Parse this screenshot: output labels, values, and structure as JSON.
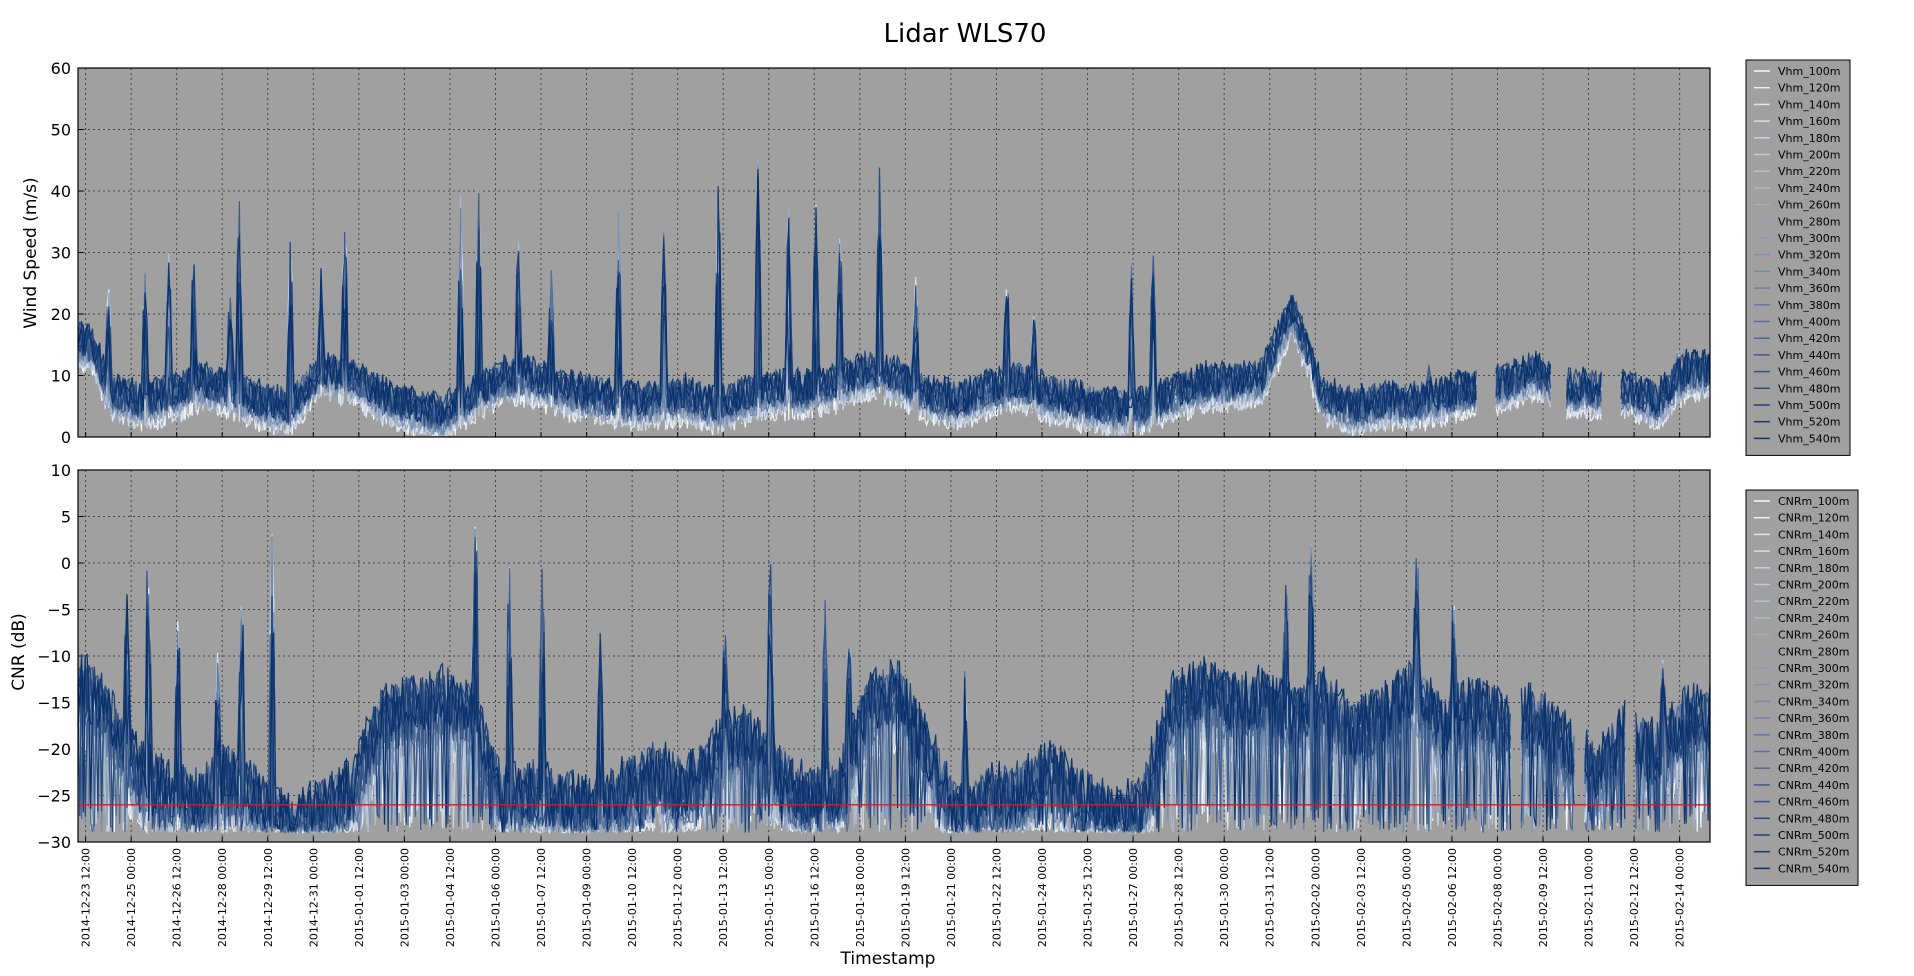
{
  "title": "Lidar WLS70",
  "colors": {
    "plot_bg": "#a0a0a0",
    "grid": "#444444",
    "threshold_line": "#e8141c",
    "series_light": "#f4f8fd",
    "series_dark": "#08306b"
  },
  "chart_data": [
    {
      "type": "line",
      "ylabel": "Wind Speed (m/s)",
      "ylim": [
        0,
        60
      ],
      "yticks": [
        "0",
        "10",
        "20",
        "30",
        "40",
        "50",
        "60"
      ],
      "grid": true,
      "legend_placement": "outside-right",
      "x_range": [
        "2014-12-23 06:00",
        "2015-02-15 00:00"
      ],
      "legend": [
        "Vhm_100m",
        "Vhm_120m",
        "Vhm_140m",
        "Vhm_160m",
        "Vhm_180m",
        "Vhm_200m",
        "Vhm_220m",
        "Vhm_240m",
        "Vhm_260m",
        "Vhm_280m",
        "Vhm_300m",
        "Vhm_320m",
        "Vhm_340m",
        "Vhm_360m",
        "Vhm_380m",
        "Vhm_400m",
        "Vhm_420m",
        "Vhm_440m",
        "Vhm_460m",
        "Vhm_480m",
        "Vhm_500m",
        "Vhm_520m",
        "Vhm_540m"
      ],
      "base_profile": {
        "t_days": [
          0,
          0.5,
          1,
          1.5,
          2,
          3,
          4,
          5,
          6,
          7,
          8,
          9,
          10,
          11,
          12,
          13,
          14,
          15,
          16,
          17,
          18,
          19,
          20,
          21,
          22,
          23,
          24,
          25,
          26,
          27,
          28,
          29,
          30,
          31,
          32,
          33,
          34,
          35,
          36,
          37,
          38,
          39,
          40,
          41,
          42,
          43,
          44,
          45,
          46,
          47,
          48,
          49,
          50,
          51,
          52,
          53
        ],
        "values": [
          15,
          14,
          7,
          6,
          5,
          6,
          8,
          7,
          5,
          4,
          10,
          9,
          6,
          4,
          3,
          6,
          9,
          9,
          7,
          6,
          5,
          5,
          6,
          4,
          6,
          7,
          7,
          8,
          10,
          9,
          6,
          5,
          7,
          8,
          6,
          5,
          4,
          4,
          6,
          8,
          8,
          9,
          20,
          6,
          4,
          5,
          5,
          6,
          7,
          8,
          10,
          7,
          7,
          7,
          5,
          10
        ]
      },
      "peaks": [
        {
          "t": 1.0,
          "v": 26
        },
        {
          "t": 2.2,
          "v": 28
        },
        {
          "t": 3.0,
          "v": 33
        },
        {
          "t": 3.8,
          "v": 31
        },
        {
          "t": 5.3,
          "v": 42
        },
        {
          "t": 5.0,
          "v": 25
        },
        {
          "t": 7.0,
          "v": 34
        },
        {
          "t": 8.0,
          "v": 30
        },
        {
          "t": 8.8,
          "v": 38
        },
        {
          "t": 12.6,
          "v": 40
        },
        {
          "t": 13.2,
          "v": 41
        },
        {
          "t": 14.5,
          "v": 34
        },
        {
          "t": 15.6,
          "v": 30
        },
        {
          "t": 17.8,
          "v": 38
        },
        {
          "t": 19.3,
          "v": 35
        },
        {
          "t": 21.1,
          "v": 45
        },
        {
          "t": 22.4,
          "v": 46
        },
        {
          "t": 23.4,
          "v": 40
        },
        {
          "t": 24.3,
          "v": 40
        },
        {
          "t": 25.1,
          "v": 35
        },
        {
          "t": 26.4,
          "v": 46
        },
        {
          "t": 27.6,
          "v": 27
        },
        {
          "t": 30.6,
          "v": 28
        },
        {
          "t": 31.5,
          "v": 22
        },
        {
          "t": 34.7,
          "v": 30
        },
        {
          "t": 35.4,
          "v": 32
        },
        {
          "t": 40.6,
          "v": 15
        },
        {
          "t": 44.5,
          "v": 12
        },
        {
          "t": 52.7,
          "v": 15
        }
      ],
      "gaps": [
        [
          46.1,
          46.7
        ],
        [
          48.5,
          49.0
        ],
        [
          50.2,
          50.8
        ]
      ]
    },
    {
      "type": "line",
      "xlabel": "Timestamp",
      "ylabel": "CNR (dB)",
      "ylim": [
        -30,
        10
      ],
      "yticks": [
        "−30",
        "−25",
        "−20",
        "−15",
        "−10",
        "−5",
        "0",
        "5",
        "10"
      ],
      "grid": true,
      "legend_placement": "outside-right",
      "threshold": -26,
      "x_range": [
        "2014-12-23 06:00",
        "2015-02-15 00:00"
      ],
      "legend": [
        "CNRm_100m",
        "CNRm_120m",
        "CNRm_140m",
        "CNRm_160m",
        "CNRm_180m",
        "CNRm_200m",
        "CNRm_220m",
        "CNRm_240m",
        "CNRm_260m",
        "CNRm_280m",
        "CNRm_300m",
        "CNRm_320m",
        "CNRm_340m",
        "CNRm_360m",
        "CNRm_380m",
        "CNRm_400m",
        "CNRm_420m",
        "CNRm_440m",
        "CNRm_460m",
        "CNRm_480m",
        "CNRm_500m",
        "CNRm_520m",
        "CNRm_540m"
      ],
      "base_profile": {
        "t_days": [
          0,
          0.5,
          1,
          2,
          3,
          4,
          5,
          6,
          7,
          8,
          9,
          10,
          11,
          12,
          13,
          14,
          15,
          16,
          17,
          18,
          19,
          20,
          21,
          22,
          23,
          24,
          25,
          26,
          27,
          28,
          29,
          30,
          31,
          32,
          33,
          34,
          35,
          36,
          37,
          38,
          39,
          40,
          41,
          42,
          43,
          44,
          45,
          46,
          47,
          48,
          49,
          50,
          51,
          52,
          53
        ],
        "values": [
          -12,
          -14,
          -16,
          -22,
          -24,
          -25,
          -22,
          -25,
          -28,
          -26,
          -24,
          -16,
          -15,
          -14,
          -16,
          -25,
          -24,
          -25,
          -26,
          -24,
          -22,
          -24,
          -20,
          -18,
          -22,
          -25,
          -24,
          -15,
          -13,
          -20,
          -27,
          -25,
          -24,
          -22,
          -25,
          -27,
          -26,
          -15,
          -13,
          -15,
          -14,
          -16,
          -14,
          -18,
          -16,
          -13,
          -17,
          -15,
          -17,
          -16,
          -19,
          -22,
          -18,
          -20,
          -16
        ]
      },
      "peaks": [
        {
          "t": 2.3,
          "v": 4
        },
        {
          "t": 1.6,
          "v": -2
        },
        {
          "t": 3.3,
          "v": -4
        },
        {
          "t": 4.6,
          "v": -9
        },
        {
          "t": 5.4,
          "v": 0
        },
        {
          "t": 6.4,
          "v": 5
        },
        {
          "t": 13.1,
          "v": 7
        },
        {
          "t": 14.2,
          "v": 3
        },
        {
          "t": 15.3,
          "v": 1
        },
        {
          "t": 17.2,
          "v": -7
        },
        {
          "t": 21.3,
          "v": -6
        },
        {
          "t": 22.8,
          "v": 3
        },
        {
          "t": 24.6,
          "v": -3
        },
        {
          "t": 25.4,
          "v": -5
        },
        {
          "t": 29.2,
          "v": -11
        },
        {
          "t": 39.8,
          "v": 0
        },
        {
          "t": 40.6,
          "v": 4
        },
        {
          "t": 44.1,
          "v": 3
        },
        {
          "t": 45.3,
          "v": -2
        },
        {
          "t": 52.2,
          "v": -10
        }
      ],
      "gaps": [
        [
          47.2,
          47.5
        ],
        [
          49.3,
          49.6
        ],
        [
          51.0,
          51.3
        ]
      ]
    }
  ],
  "x_ticks": [
    "2014-12-23 12:00",
    "2014-12-25 00:00",
    "2014-12-26 12:00",
    "2014-12-28 00:00",
    "2014-12-29 12:00",
    "2014-12-31 00:00",
    "2015-01-01 12:00",
    "2015-01-03 00:00",
    "2015-01-04 12:00",
    "2015-01-06 00:00",
    "2015-01-07 12:00",
    "2015-01-09 00:00",
    "2015-01-10 12:00",
    "2015-01-12 00:00",
    "2015-01-13 12:00",
    "2015-01-15 00:00",
    "2015-01-16 12:00",
    "2015-01-18 00:00",
    "2015-01-19 12:00",
    "2015-01-21 00:00",
    "2015-01-22 12:00",
    "2015-01-24 00:00",
    "2015-01-25 12:00",
    "2015-01-27 00:00",
    "2015-01-28 12:00",
    "2015-01-30 00:00",
    "2015-01-31 12:00",
    "2015-02-02 00:00",
    "2015-02-03 12:00",
    "2015-02-05 00:00",
    "2015-02-06 12:00",
    "2015-02-08 00:00",
    "2015-02-09 12:00",
    "2015-02-11 00:00",
    "2015-02-12 12:00",
    "2015-02-14 00:00"
  ]
}
